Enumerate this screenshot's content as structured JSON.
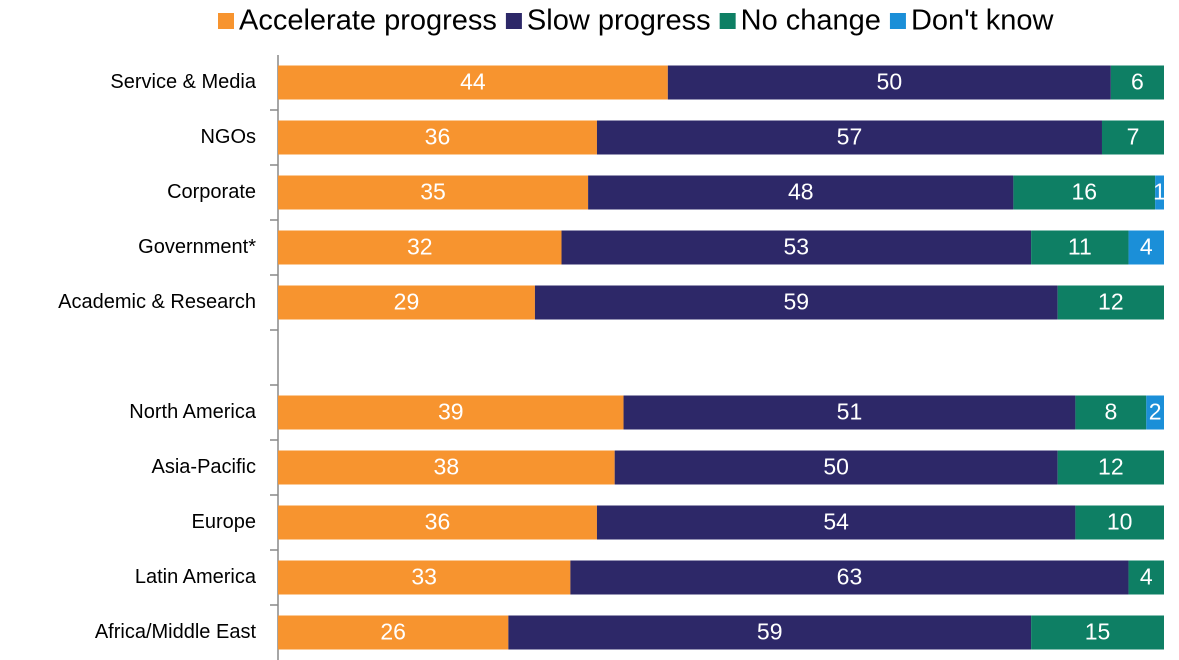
{
  "chart_data": {
    "type": "stacked-barh",
    "categories": [
      "Service & Media",
      "NGOs",
      "Corporate",
      "Government*",
      "Academic & Research",
      null,
      "North America",
      "Asia-Pacific",
      "Europe",
      "Latin America",
      "Africa/Middle East"
    ],
    "series": [
      {
        "name": "Accelerate progress",
        "color": "#f7942f",
        "values": [
          44,
          36,
          35,
          32,
          29,
          null,
          39,
          38,
          36,
          33,
          26
        ]
      },
      {
        "name": "Slow progress",
        "color": "#2d2868",
        "values": [
          50,
          57,
          48,
          53,
          59,
          null,
          51,
          50,
          54,
          63,
          59
        ]
      },
      {
        "name": "No change",
        "color": "#0e7f64",
        "values": [
          6,
          7,
          16,
          11,
          12,
          null,
          8,
          12,
          10,
          4,
          15
        ]
      },
      {
        "name": "Don't know",
        "color": "#1b8fd8",
        "values": [
          null,
          null,
          1,
          4,
          null,
          null,
          2,
          null,
          null,
          null,
          null
        ]
      }
    ],
    "xlim": [
      0,
      100
    ],
    "legend": "top"
  }
}
